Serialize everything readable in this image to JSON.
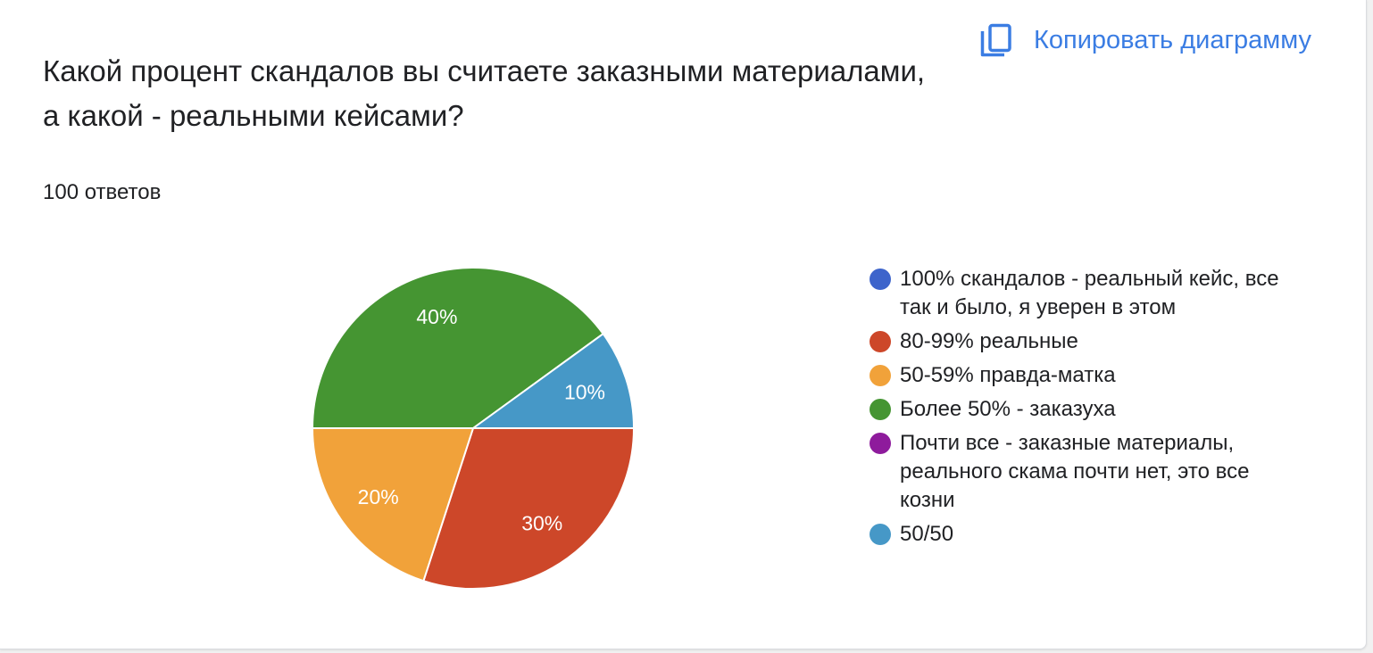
{
  "copy_button": {
    "label": "Копировать диаграмму",
    "icon": "copy-icon",
    "color": "#3b7de3"
  },
  "question": {
    "lines": [
      "Какой процент скандалов вы считаете заказными материалами,",
      "а какой - реальными кейсами?"
    ]
  },
  "responses_label": "100 ответов",
  "chart_data": {
    "type": "pie",
    "categories": [
      "100% скандалов - реальный кейс, все так и было, я уверен в этом",
      "80-99% реальные",
      "50-59% правда-матка",
      "Более 50% - заказуха",
      "Почти все - заказные материалы, реального скама почти нет, это все козни",
      "50/50"
    ],
    "values": [
      0,
      30,
      20,
      40,
      0,
      10
    ],
    "value_suffix": "%",
    "colors": [
      "#3d64cb",
      "#cd4729",
      "#f1a23a",
      "#459532",
      "#8e1b9c",
      "#4698c7"
    ],
    "legend": "right"
  }
}
